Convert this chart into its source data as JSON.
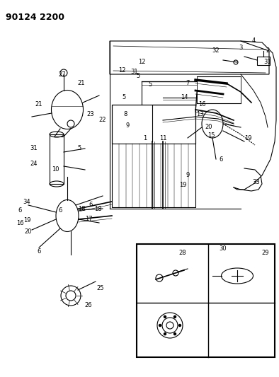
{
  "title": "90124 2200",
  "bg_color": "#ffffff",
  "fig_width": 3.94,
  "fig_height": 5.33,
  "dpi": 100,
  "image_data": "target_based"
}
